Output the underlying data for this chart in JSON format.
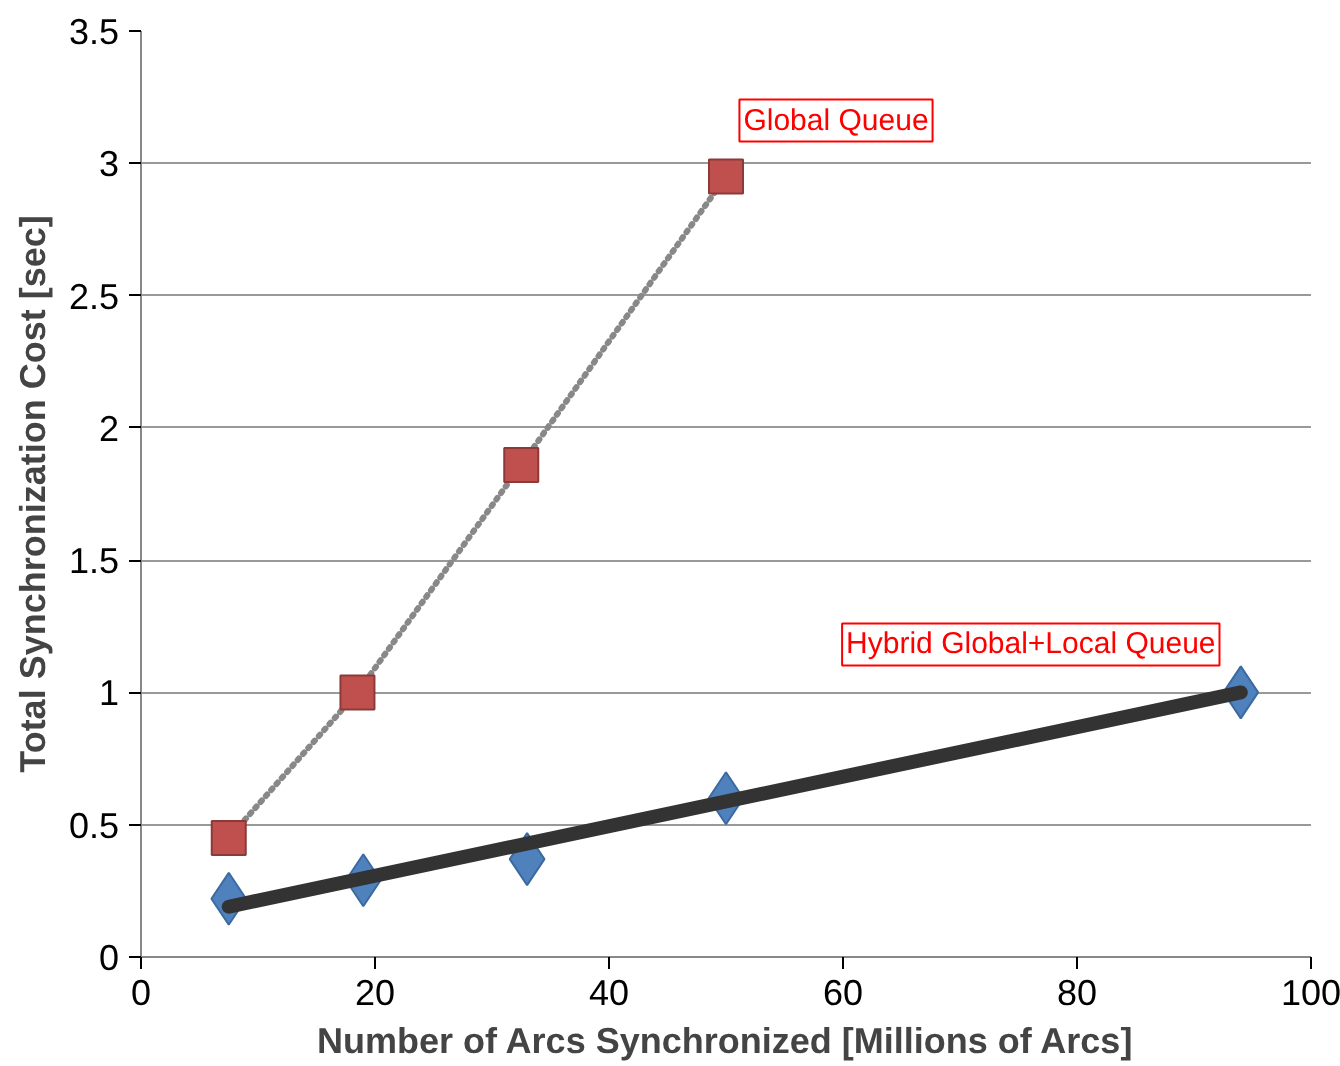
{
  "chart_data": {
    "type": "scatter",
    "xlabel": "Number of Arcs Synchronized [Millions of Arcs]",
    "ylabel": "Total Synchronization Cost [sec]",
    "xlim": [
      0,
      100
    ],
    "xticks": [
      0,
      20,
      40,
      60,
      80,
      100
    ],
    "ylim": [
      0,
      3.5
    ],
    "yticks": [
      0,
      0.5,
      1,
      1.5,
      2,
      2.5,
      3,
      3.5
    ],
    "grid": "y",
    "series": [
      {
        "name": "Global Queue",
        "type": "line",
        "color": "#c0504d",
        "marker": "square",
        "line_style": "dotted",
        "x": [
          7.5,
          18.5,
          32.5,
          50
        ],
        "values": [
          0.45,
          1.0,
          1.86,
          2.95
        ]
      },
      {
        "type": "line",
        "color": "#333333",
        "marker": "none",
        "line_style": "solid",
        "x": [
          7.5,
          94
        ],
        "values": [
          0.19,
          1.0
        ]
      },
      {
        "name": "Hybrid Global+Local Queue",
        "color": "#4f81bd",
        "marker": "diamond",
        "x": [
          7.5,
          19,
          33,
          50,
          94
        ],
        "values": [
          0.22,
          0.29,
          0.37,
          0.6,
          1.0
        ]
      }
    ]
  }
}
